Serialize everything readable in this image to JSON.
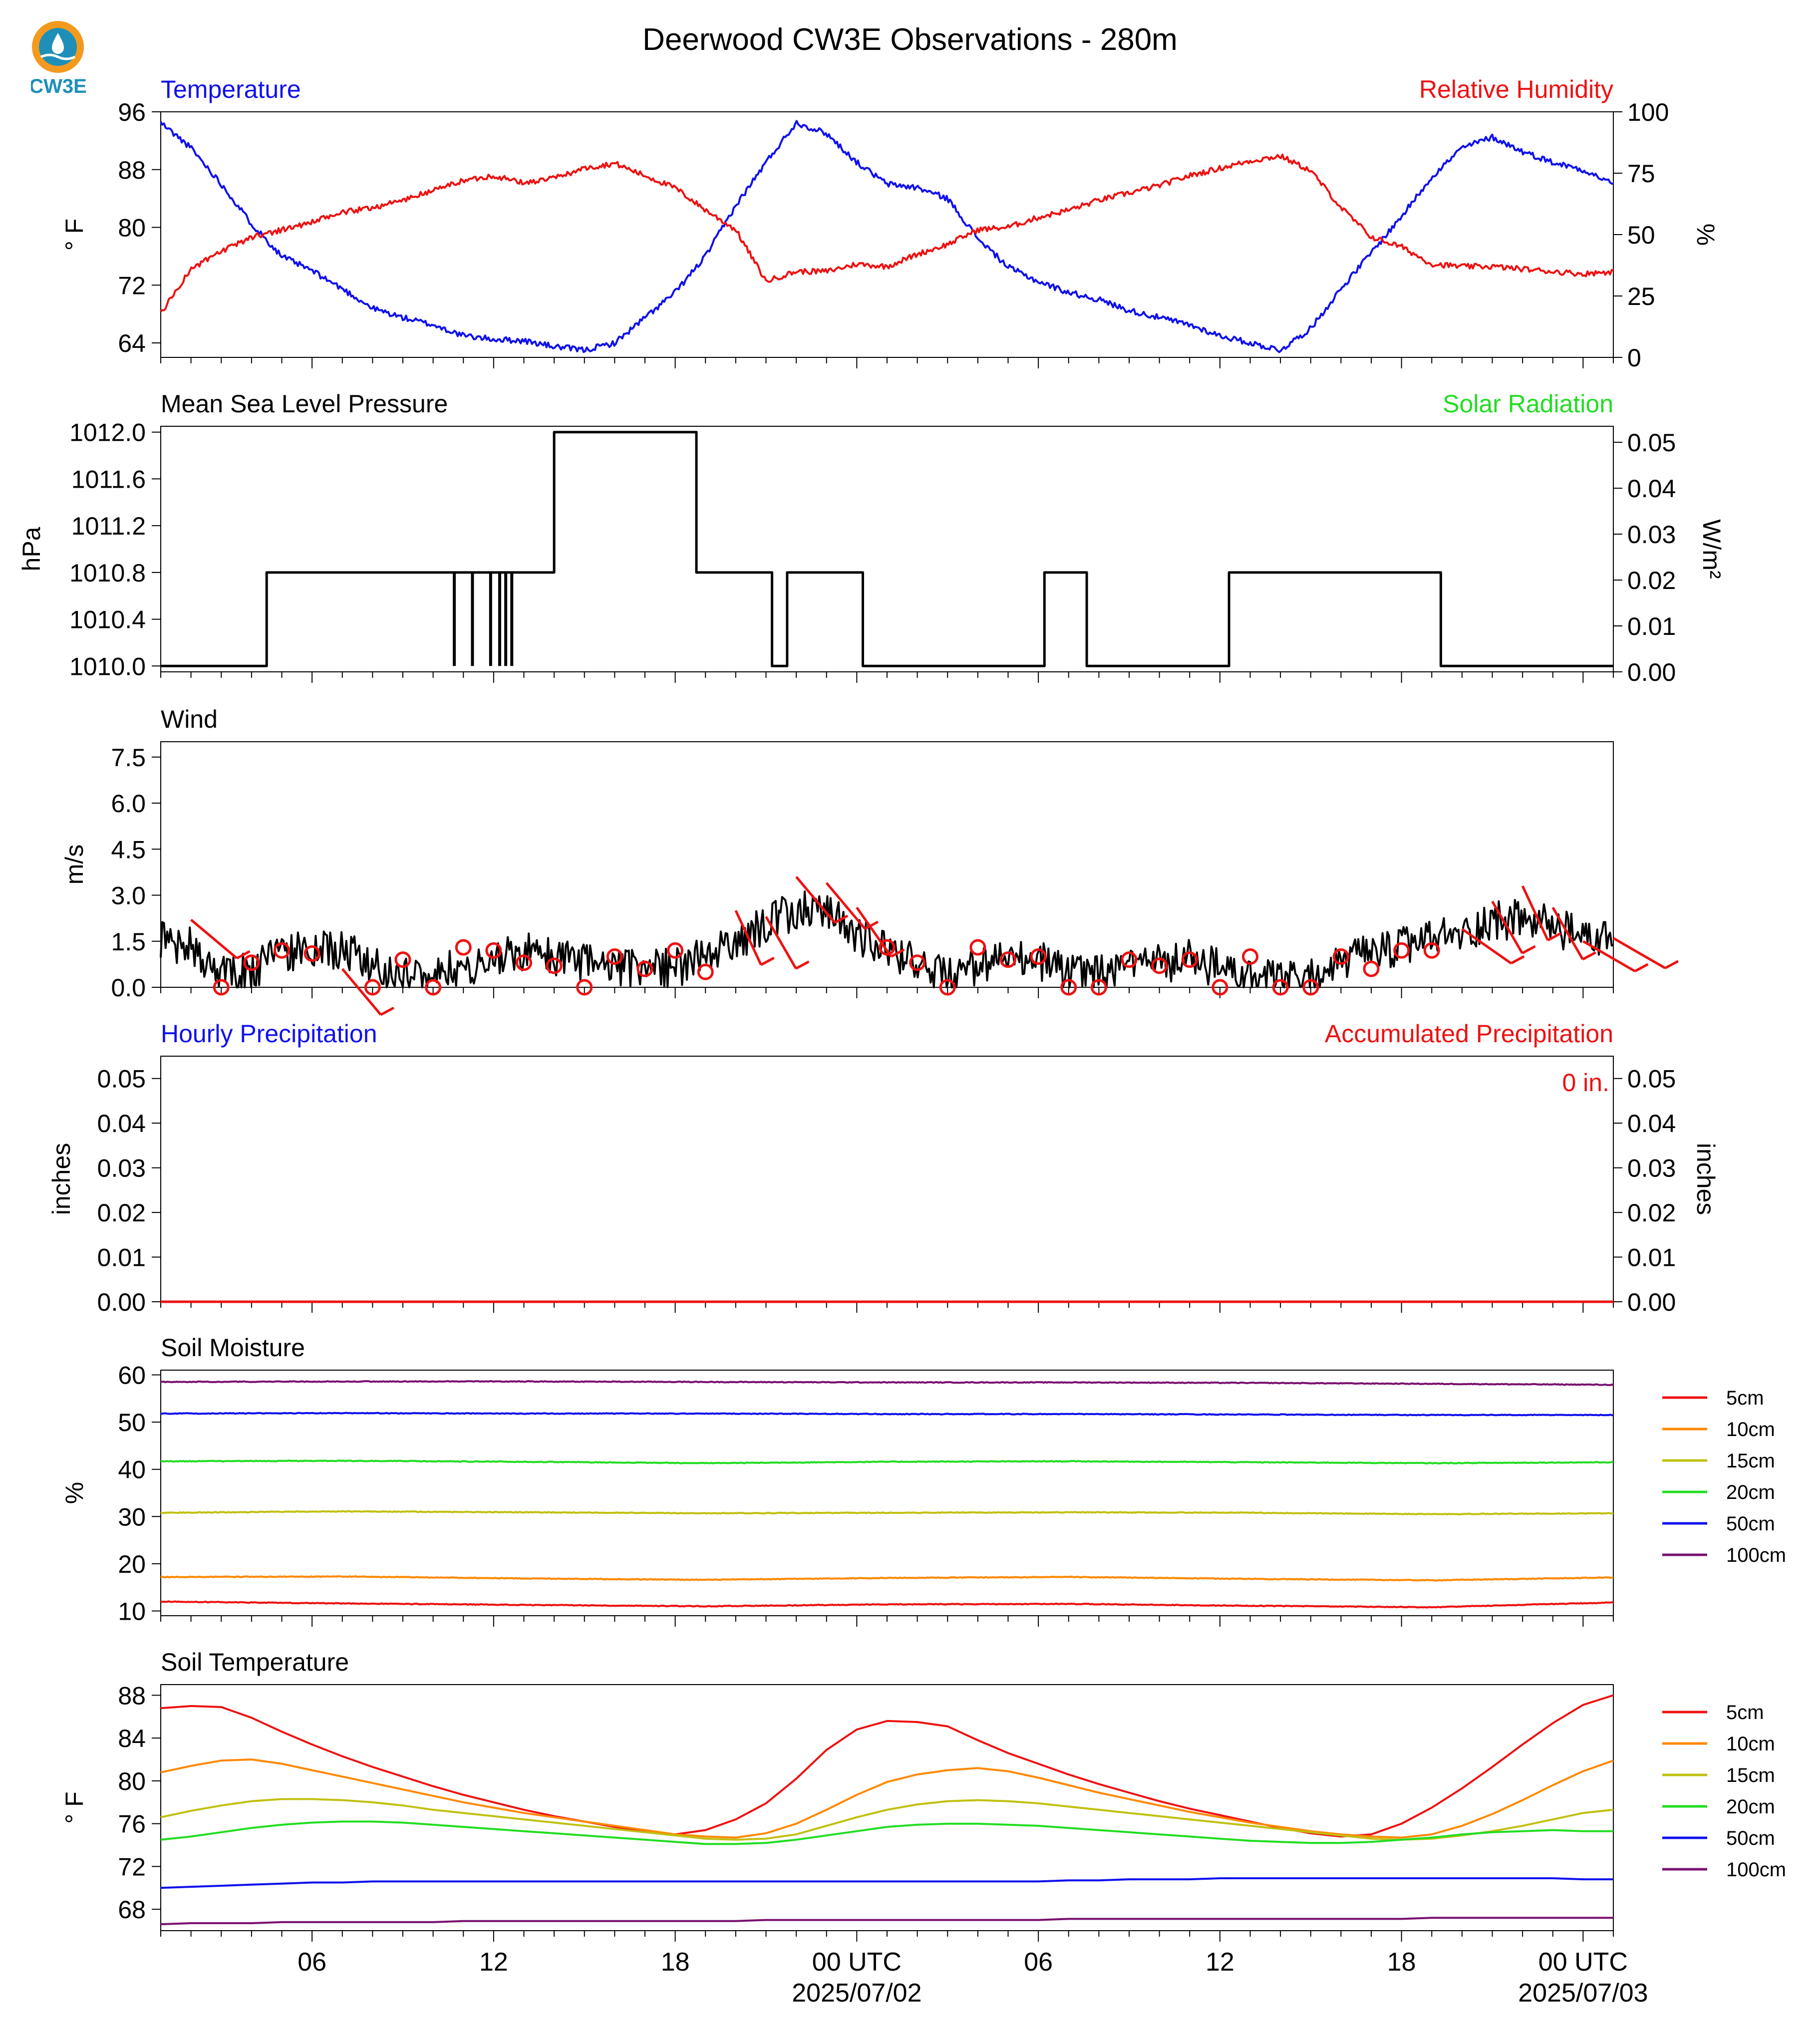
{
  "title": "Deerwood CW3E Observations - 280m",
  "logo_text": "CW3E",
  "colors": {
    "blue": "#1010ee",
    "red": "#ee1111",
    "green": "#22dd22",
    "orange": "#ff8800",
    "yellow": "#c0c011",
    "purple": "#7a1070",
    "black": "#000000",
    "logo": "#1e8fb8"
  },
  "time_axis": {
    "start": "2025-07-01 01:00 UTC",
    "end": "2025-07-03 01:00 UTC",
    "tick_labels": [
      "06",
      "12",
      "18",
      "00 UTC",
      "06",
      "12",
      "18",
      "00 UTC"
    ],
    "date_labels": [
      "2025/07/02",
      "2025/07/03"
    ]
  },
  "chart_data": [
    {
      "type": "line",
      "panel": "temperature-humidity",
      "left_title": "Temperature",
      "right_title": "Relative Humidity",
      "ylabel": "° F",
      "ylabel_right": "%",
      "ylim": [
        62,
        96
      ],
      "ylim_right": [
        0,
        100
      ],
      "yticks": [
        "96",
        "88",
        "80",
        "72",
        "64"
      ],
      "yticks_right": [
        "100",
        "75",
        "50",
        "25",
        "0"
      ],
      "x_hours": [
        0,
        1,
        2,
        3,
        4,
        5,
        6,
        7,
        8,
        9,
        10,
        11,
        12,
        13,
        14,
        15,
        16,
        17,
        18,
        19,
        20,
        21,
        22,
        23,
        24,
        25,
        26,
        27,
        28,
        29,
        30,
        31,
        32,
        33,
        34,
        35,
        36,
        37,
        38,
        39,
        40,
        41,
        42,
        43,
        44,
        45,
        46,
        47,
        48
      ],
      "series": [
        {
          "name": "Temperature",
          "axis": "left",
          "color": "blue",
          "values": [
            94.5,
            91,
            86,
            80.5,
            76,
            74,
            71.5,
            68.8,
            67.5,
            66.5,
            65,
            64.5,
            64.3,
            63.5,
            63,
            64,
            67.5,
            71,
            76,
            83,
            89,
            94.5,
            93,
            89,
            86,
            85.5,
            84,
            78.5,
            74.5,
            72.5,
            71,
            70,
            68.5,
            67.5,
            66.5,
            65,
            64,
            63,
            66,
            71.5,
            76.5,
            81.5,
            87,
            91,
            92.5,
            90.5,
            89,
            88,
            86
          ]
        },
        {
          "name": "Relative Humidity",
          "axis": "right",
          "color": "red",
          "values": [
            18,
            36,
            43,
            49,
            52,
            55,
            59,
            61,
            64,
            68,
            72,
            74,
            71,
            73,
            77,
            79,
            74,
            69,
            60,
            52,
            31,
            35,
            35,
            38,
            37,
            42,
            46,
            52,
            53,
            57,
            60,
            64,
            67,
            70,
            74,
            77,
            80,
            82,
            76,
            61,
            49,
            45,
            38,
            37,
            37,
            36,
            35,
            34,
            35
          ]
        }
      ]
    },
    {
      "type": "line",
      "panel": "pressure-solar",
      "left_title": "Mean Sea Level Pressure",
      "right_title": "Solar Radiation",
      "ylabel": "hPa",
      "ylabel_right": "W/m²",
      "ylim": [
        1010.0,
        1012.0
      ],
      "ylim_right": [
        0.0,
        0.05
      ],
      "yticks": [
        "1012.0",
        "1011.6",
        "1011.2",
        "1010.8",
        "1010.4",
        "1010.0"
      ],
      "yticks_right": [
        "0.05",
        "0.04",
        "0.03",
        "0.02",
        "0.01",
        "0.00"
      ],
      "series": [
        {
          "name": "Mean Sea Level Pressure",
          "color": "black",
          "steps": [
            [
              0,
              1010.0
            ],
            [
              3.5,
              1010.8
            ],
            [
              13,
              1012.0
            ],
            [
              17.7,
              1010.8
            ],
            [
              20.2,
              1010.0
            ],
            [
              20.7,
              1010.8
            ],
            [
              23.2,
              1010.0
            ],
            [
              29.2,
              1010.8
            ],
            [
              30.6,
              1010.0
            ],
            [
              35.3,
              1010.8
            ],
            [
              42.3,
              1010.0
            ],
            [
              48,
              1010.0
            ]
          ],
          "dips": [
            9.7,
            10.3,
            10.9,
            11.2,
            11.4,
            11.6
          ]
        }
      ]
    },
    {
      "type": "line",
      "panel": "wind",
      "left_title": "Wind",
      "ylabel": "m/s",
      "ylim": [
        0,
        8.0
      ],
      "yticks": [
        "7.5",
        "6.0",
        "4.5",
        "3.0",
        "1.5",
        "0.0"
      ],
      "x_hours": [
        0,
        1,
        2,
        3,
        4,
        5,
        6,
        7,
        8,
        9,
        10,
        11,
        12,
        13,
        14,
        15,
        16,
        17,
        18,
        19,
        20,
        21,
        22,
        23,
        24,
        25,
        26,
        27,
        28,
        29,
        30,
        31,
        32,
        33,
        34,
        35,
        36,
        37,
        38,
        39,
        40,
        41,
        42,
        43,
        44,
        45,
        46,
        47,
        48
      ],
      "series": [
        {
          "name": "Wind Speed",
          "color": "black",
          "values": [
            1.6,
            1.3,
            0.4,
            0.5,
            1.2,
            1.1,
            1.3,
            0.7,
            0.4,
            0.6,
            0.5,
            0.9,
            1.2,
            0.9,
            0.8,
            0.6,
            0.7,
            0.6,
            1.0,
            1.4,
            2.1,
            2.5,
            2.6,
            1.7,
            1.2,
            0.8,
            0.3,
            0.6,
            0.9,
            0.9,
            0.5,
            0.4,
            0.6,
            0.8,
            0.9,
            0.6,
            0.3,
            0.2,
            0.3,
            0.8,
            1.1,
            1.3,
            1.6,
            1.7,
            2.2,
            2.2,
            2.0,
            1.6,
            1.6
          ]
        }
      ],
      "barb_hours": [
        1,
        2,
        3,
        4,
        5,
        6,
        7,
        8,
        9,
        10,
        11,
        12,
        13,
        14,
        15,
        16,
        17,
        18,
        19,
        20,
        21,
        22,
        23,
        24,
        25,
        26,
        27,
        28,
        29,
        30,
        31,
        32,
        33,
        34,
        35,
        36,
        37,
        38,
        39,
        40,
        41,
        42,
        43,
        44,
        45,
        46,
        47,
        48
      ],
      "barb_speeds": [
        2.2,
        0,
        0.8,
        1.2,
        1.1,
        0.6,
        0,
        0.9,
        0,
        1.3,
        1.2,
        0.8,
        0.7,
        0,
        1.0,
        0.6,
        1.2,
        0.5,
        2.5,
        2.3,
        3.6,
        3.4,
        2.6,
        1.3,
        0.8,
        0,
        1.3,
        0.9,
        1.0,
        0,
        0,
        0.9,
        0.7,
        0.9,
        0,
        1.0,
        0,
        0,
        1.0,
        0.6,
        1.2,
        1.2,
        1.9,
        2.8,
        3.3,
        2.6,
        1.5,
        1.6
      ],
      "barb_dirs": [
        310,
        0,
        0,
        0,
        0,
        320,
        0,
        0,
        0,
        0,
        0,
        0,
        0,
        0,
        0,
        0,
        0,
        0,
        335,
        330,
        320,
        320,
        325,
        0,
        0,
        0,
        0,
        0,
        0,
        0,
        0,
        0,
        0,
        0,
        0,
        0,
        0,
        0,
        0,
        0,
        0,
        0,
        305,
        330,
        335,
        330,
        300,
        300
      ]
    },
    {
      "type": "line",
      "panel": "precipitation",
      "left_title": "Hourly Precipitation",
      "right_title": "Accumulated Precipitation",
      "annotation": "0 in.",
      "ylabel": "inches",
      "ylabel_right": "inches",
      "ylim": [
        0,
        0.055
      ],
      "yticks": [
        "0.05",
        "0.04",
        "0.03",
        "0.02",
        "0.01",
        "0.00"
      ],
      "yticks_right": [
        "0.05",
        "0.04",
        "0.03",
        "0.02",
        "0.01",
        "0.00"
      ],
      "series": [
        {
          "name": "Hourly Precipitation",
          "color": "blue",
          "values": [
            0,
            0
          ]
        },
        {
          "name": "Accumulated Precipitation",
          "color": "red",
          "values": [
            0,
            0
          ]
        }
      ]
    },
    {
      "type": "line",
      "panel": "soil-moisture",
      "left_title": "Soil Moisture",
      "ylabel": "%",
      "ylim": [
        9,
        61
      ],
      "yticks": [
        "60",
        "50",
        "40",
        "30",
        "20",
        "10"
      ],
      "x_hours": [
        0,
        6,
        12,
        18,
        24,
        30,
        36,
        42,
        48
      ],
      "series": [
        {
          "name": "5cm",
          "color": "red",
          "values": [
            12,
            11.6,
            11.3,
            11.0,
            11.4,
            11.5,
            11.1,
            10.8,
            11.8
          ]
        },
        {
          "name": "10cm",
          "color": "orange",
          "values": [
            17.2,
            17.3,
            16.9,
            16.6,
            17.0,
            17.2,
            16.8,
            16.5,
            17.1
          ]
        },
        {
          "name": "15cm",
          "color": "yellow",
          "values": [
            30.8,
            31.1,
            30.9,
            30.7,
            30.8,
            30.9,
            30.8,
            30.5,
            30.7
          ]
        },
        {
          "name": "20cm",
          "color": "green",
          "values": [
            41.7,
            41.8,
            41.6,
            41.3,
            41.6,
            41.7,
            41.5,
            41.3,
            41.5
          ]
        },
        {
          "name": "50cm",
          "color": "blue",
          "values": [
            51.8,
            51.9,
            51.8,
            51.8,
            51.7,
            51.7,
            51.6,
            51.5,
            51.5
          ]
        },
        {
          "name": "100cm",
          "color": "purple",
          "values": [
            58.5,
            58.6,
            58.6,
            58.5,
            58.4,
            58.4,
            58.3,
            58.1,
            57.9
          ]
        }
      ],
      "legend_labels": [
        "5cm",
        "10cm",
        "15cm",
        "20cm",
        "50cm",
        "100cm"
      ]
    },
    {
      "type": "line",
      "panel": "soil-temperature",
      "left_title": "Soil Temperature",
      "ylabel": "° F",
      "ylim": [
        66,
        89
      ],
      "yticks": [
        "88",
        "84",
        "80",
        "76",
        "72",
        "68"
      ],
      "x_hours": [
        0,
        1,
        2,
        3,
        4,
        5,
        6,
        7,
        8,
        9,
        10,
        11,
        12,
        13,
        14,
        15,
        16,
        17,
        18,
        19,
        20,
        21,
        22,
        23,
        24,
        25,
        26,
        27,
        28,
        29,
        30,
        31,
        32,
        33,
        34,
        35,
        36,
        37,
        38,
        39,
        40,
        41,
        42,
        43,
        44,
        45,
        46,
        47,
        48
      ],
      "series": [
        {
          "name": "5cm",
          "color": "red",
          "values": [
            86.8,
            87.0,
            86.9,
            85.9,
            84.6,
            83.4,
            82.3,
            81.3,
            80.4,
            79.5,
            78.7,
            78.0,
            77.3,
            76.7,
            76.2,
            75.7,
            75.3,
            75.0,
            75.4,
            76.4,
            77.9,
            80.2,
            82.9,
            84.8,
            85.6,
            85.5,
            85.1,
            83.8,
            82.6,
            81.6,
            80.6,
            79.7,
            78.9,
            78.1,
            77.4,
            76.8,
            76.2,
            75.6,
            75.1,
            74.8,
            75.0,
            76.0,
            77.5,
            79.3,
            81.3,
            83.4,
            85.4,
            87.1,
            88.0
          ]
        },
        {
          "name": "10cm",
          "color": "orange",
          "values": [
            80.8,
            81.4,
            81.9,
            82.0,
            81.6,
            81.0,
            80.4,
            79.8,
            79.2,
            78.6,
            78.0,
            77.5,
            77.0,
            76.6,
            76.2,
            75.8,
            75.4,
            75.0,
            74.8,
            74.7,
            75.1,
            76.0,
            77.3,
            78.7,
            79.9,
            80.6,
            81.0,
            81.2,
            80.9,
            80.3,
            79.6,
            78.9,
            78.3,
            77.7,
            77.1,
            76.6,
            76.1,
            75.7,
            75.3,
            75.0,
            74.8,
            74.7,
            75.0,
            75.8,
            76.9,
            78.2,
            79.6,
            80.9,
            81.9
          ]
        },
        {
          "name": "15cm",
          "color": "yellow",
          "values": [
            76.6,
            77.2,
            77.7,
            78.1,
            78.3,
            78.3,
            78.2,
            78.0,
            77.7,
            77.3,
            77.0,
            76.7,
            76.4,
            76.1,
            75.8,
            75.5,
            75.2,
            74.9,
            74.6,
            74.5,
            74.6,
            75.0,
            75.8,
            76.6,
            77.3,
            77.8,
            78.1,
            78.2,
            78.1,
            77.9,
            77.6,
            77.3,
            77.0,
            76.7,
            76.4,
            76.1,
            75.8,
            75.5,
            75.2,
            74.9,
            74.6,
            74.5,
            74.6,
            74.9,
            75.3,
            75.8,
            76.4,
            77.0,
            77.3
          ]
        },
        {
          "name": "20cm",
          "color": "green",
          "values": [
            74.5,
            74.8,
            75.2,
            75.6,
            75.9,
            76.1,
            76.2,
            76.2,
            76.1,
            75.9,
            75.7,
            75.5,
            75.3,
            75.1,
            74.9,
            74.7,
            74.5,
            74.3,
            74.1,
            74.1,
            74.2,
            74.5,
            74.9,
            75.3,
            75.7,
            75.9,
            76.0,
            76.0,
            75.9,
            75.8,
            75.6,
            75.4,
            75.2,
            75.0,
            74.8,
            74.6,
            74.4,
            74.3,
            74.2,
            74.2,
            74.3,
            74.5,
            74.7,
            75.0,
            75.2,
            75.3,
            75.4,
            75.3,
            75.3
          ]
        },
        {
          "name": "50cm",
          "color": "blue",
          "values": [
            70.0,
            70.1,
            70.2,
            70.3,
            70.4,
            70.5,
            70.5,
            70.6,
            70.6,
            70.6,
            70.6,
            70.6,
            70.6,
            70.6,
            70.6,
            70.6,
            70.6,
            70.6,
            70.6,
            70.6,
            70.6,
            70.6,
            70.6,
            70.6,
            70.6,
            70.6,
            70.6,
            70.6,
            70.6,
            70.6,
            70.7,
            70.7,
            70.8,
            70.8,
            70.8,
            70.9,
            70.9,
            70.9,
            70.9,
            70.9,
            70.9,
            70.9,
            70.9,
            70.9,
            70.9,
            70.9,
            70.9,
            70.8,
            70.8
          ]
        },
        {
          "name": "100cm",
          "color": "purple",
          "values": [
            66.6,
            66.7,
            66.7,
            66.7,
            66.8,
            66.8,
            66.8,
            66.8,
            66.8,
            66.8,
            66.9,
            66.9,
            66.9,
            66.9,
            66.9,
            66.9,
            66.9,
            66.9,
            66.9,
            66.9,
            67.0,
            67.0,
            67.0,
            67.0,
            67.0,
            67.0,
            67.0,
            67.0,
            67.0,
            67.0,
            67.1,
            67.1,
            67.1,
            67.1,
            67.1,
            67.1,
            67.1,
            67.1,
            67.1,
            67.1,
            67.1,
            67.1,
            67.2,
            67.2,
            67.2,
            67.2,
            67.2,
            67.2,
            67.2
          ]
        }
      ],
      "legend_labels": [
        "5cm",
        "10cm",
        "15cm",
        "20cm",
        "50cm",
        "100cm"
      ]
    }
  ]
}
